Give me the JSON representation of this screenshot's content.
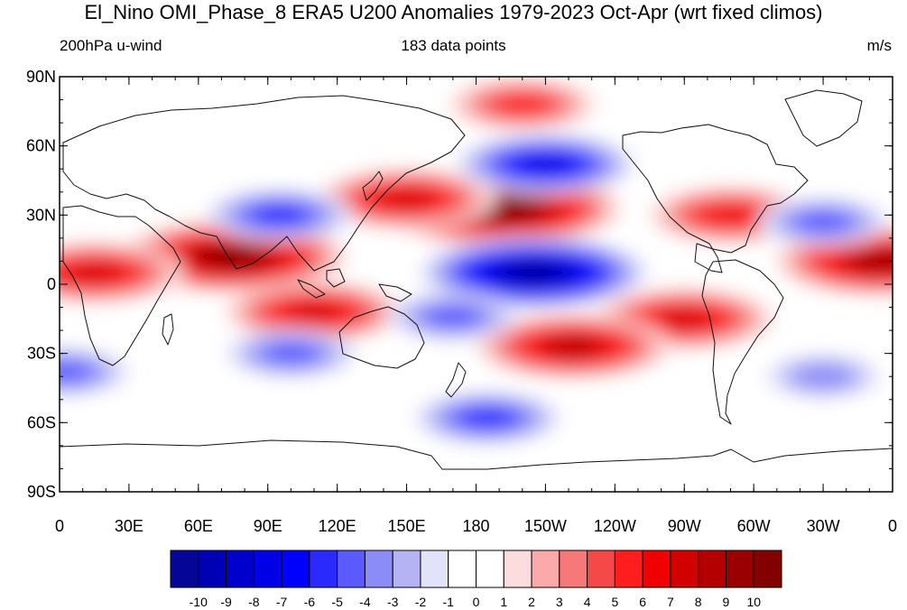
{
  "title": "El_Nino OMI_Phase_8 ERA5 U200 Anomalies 1979-2023 Oct-Apr (wrt fixed climos)",
  "subtitle_left": "200hPa u-wind",
  "subtitle_center": "183 data points",
  "subtitle_right": "m/s",
  "chart_data": {
    "type": "heatmap",
    "projection": "cylindrical equidistant",
    "lon_ticks": [
      "0",
      "30E",
      "60E",
      "90E",
      "120E",
      "150E",
      "180",
      "150W",
      "120W",
      "90W",
      "60W",
      "30W",
      "0"
    ],
    "lat_ticks": [
      "90N",
      "60N",
      "30N",
      "0",
      "30S",
      "60S",
      "90S"
    ],
    "lon_range": [
      0,
      360
    ],
    "lat_range": [
      -90,
      90
    ],
    "colorbar": {
      "labels": [
        "-10",
        "-9",
        "-8",
        "-7",
        "-6",
        "-5",
        "-4",
        "-3",
        "-2",
        "-1",
        "0",
        "1",
        "2",
        "3",
        "4",
        "5",
        "6",
        "7",
        "8",
        "9",
        "10"
      ],
      "colors": [
        "#050596",
        "#0000b4",
        "#0000cd",
        "#0000e6",
        "#0000ff",
        "#2a2aff",
        "#5a5aff",
        "#8c8cf8",
        "#b4b4f5",
        "#e2e2fa",
        "#ffffff",
        "#ffffff",
        "#fcdcdc",
        "#faaaaa",
        "#f77878",
        "#f54848",
        "#ff1e1e",
        "#f00000",
        "#d20000",
        "#b40000",
        "#9b0000",
        "#820000"
      ]
    },
    "anomaly_features": [
      {
        "sign": "positive",
        "lon": 190,
        "lat": 33,
        "peak": 11
      },
      {
        "sign": "positive",
        "lon": 150,
        "lat": 37,
        "peak": 7
      },
      {
        "sign": "positive",
        "lon": 75,
        "lat": 12,
        "peak": 10
      },
      {
        "sign": "positive",
        "lon": 15,
        "lat": 5,
        "peak": 7
      },
      {
        "sign": "positive",
        "lon": 110,
        "lat": -12,
        "peak": 7
      },
      {
        "sign": "positive",
        "lon": 355,
        "lat": 10,
        "peak": 9
      },
      {
        "sign": "positive",
        "lon": 270,
        "lat": -15,
        "peak": 7
      },
      {
        "sign": "positive",
        "lon": 222,
        "lat": -27,
        "peak": 8
      },
      {
        "sign": "positive",
        "lon": 290,
        "lat": 30,
        "peak": 6
      },
      {
        "sign": "positive",
        "lon": 200,
        "lat": 78,
        "peak": 5
      },
      {
        "sign": "negative",
        "lon": 205,
        "lat": 5,
        "peak": -10
      },
      {
        "sign": "negative",
        "lon": 210,
        "lat": 52,
        "peak": -7
      },
      {
        "sign": "negative",
        "lon": 95,
        "lat": 30,
        "peak": -5
      },
      {
        "sign": "negative",
        "lon": 185,
        "lat": -58,
        "peak": -5
      },
      {
        "sign": "negative",
        "lon": 330,
        "lat": 27,
        "peak": -4
      },
      {
        "sign": "negative",
        "lon": 170,
        "lat": -14,
        "peak": -4
      },
      {
        "sign": "negative",
        "lon": 100,
        "lat": -30,
        "peak": -4
      },
      {
        "sign": "negative",
        "lon": 2,
        "lat": -38,
        "peak": -4
      },
      {
        "sign": "negative",
        "lon": 330,
        "lat": -40,
        "peak": -3
      }
    ]
  }
}
